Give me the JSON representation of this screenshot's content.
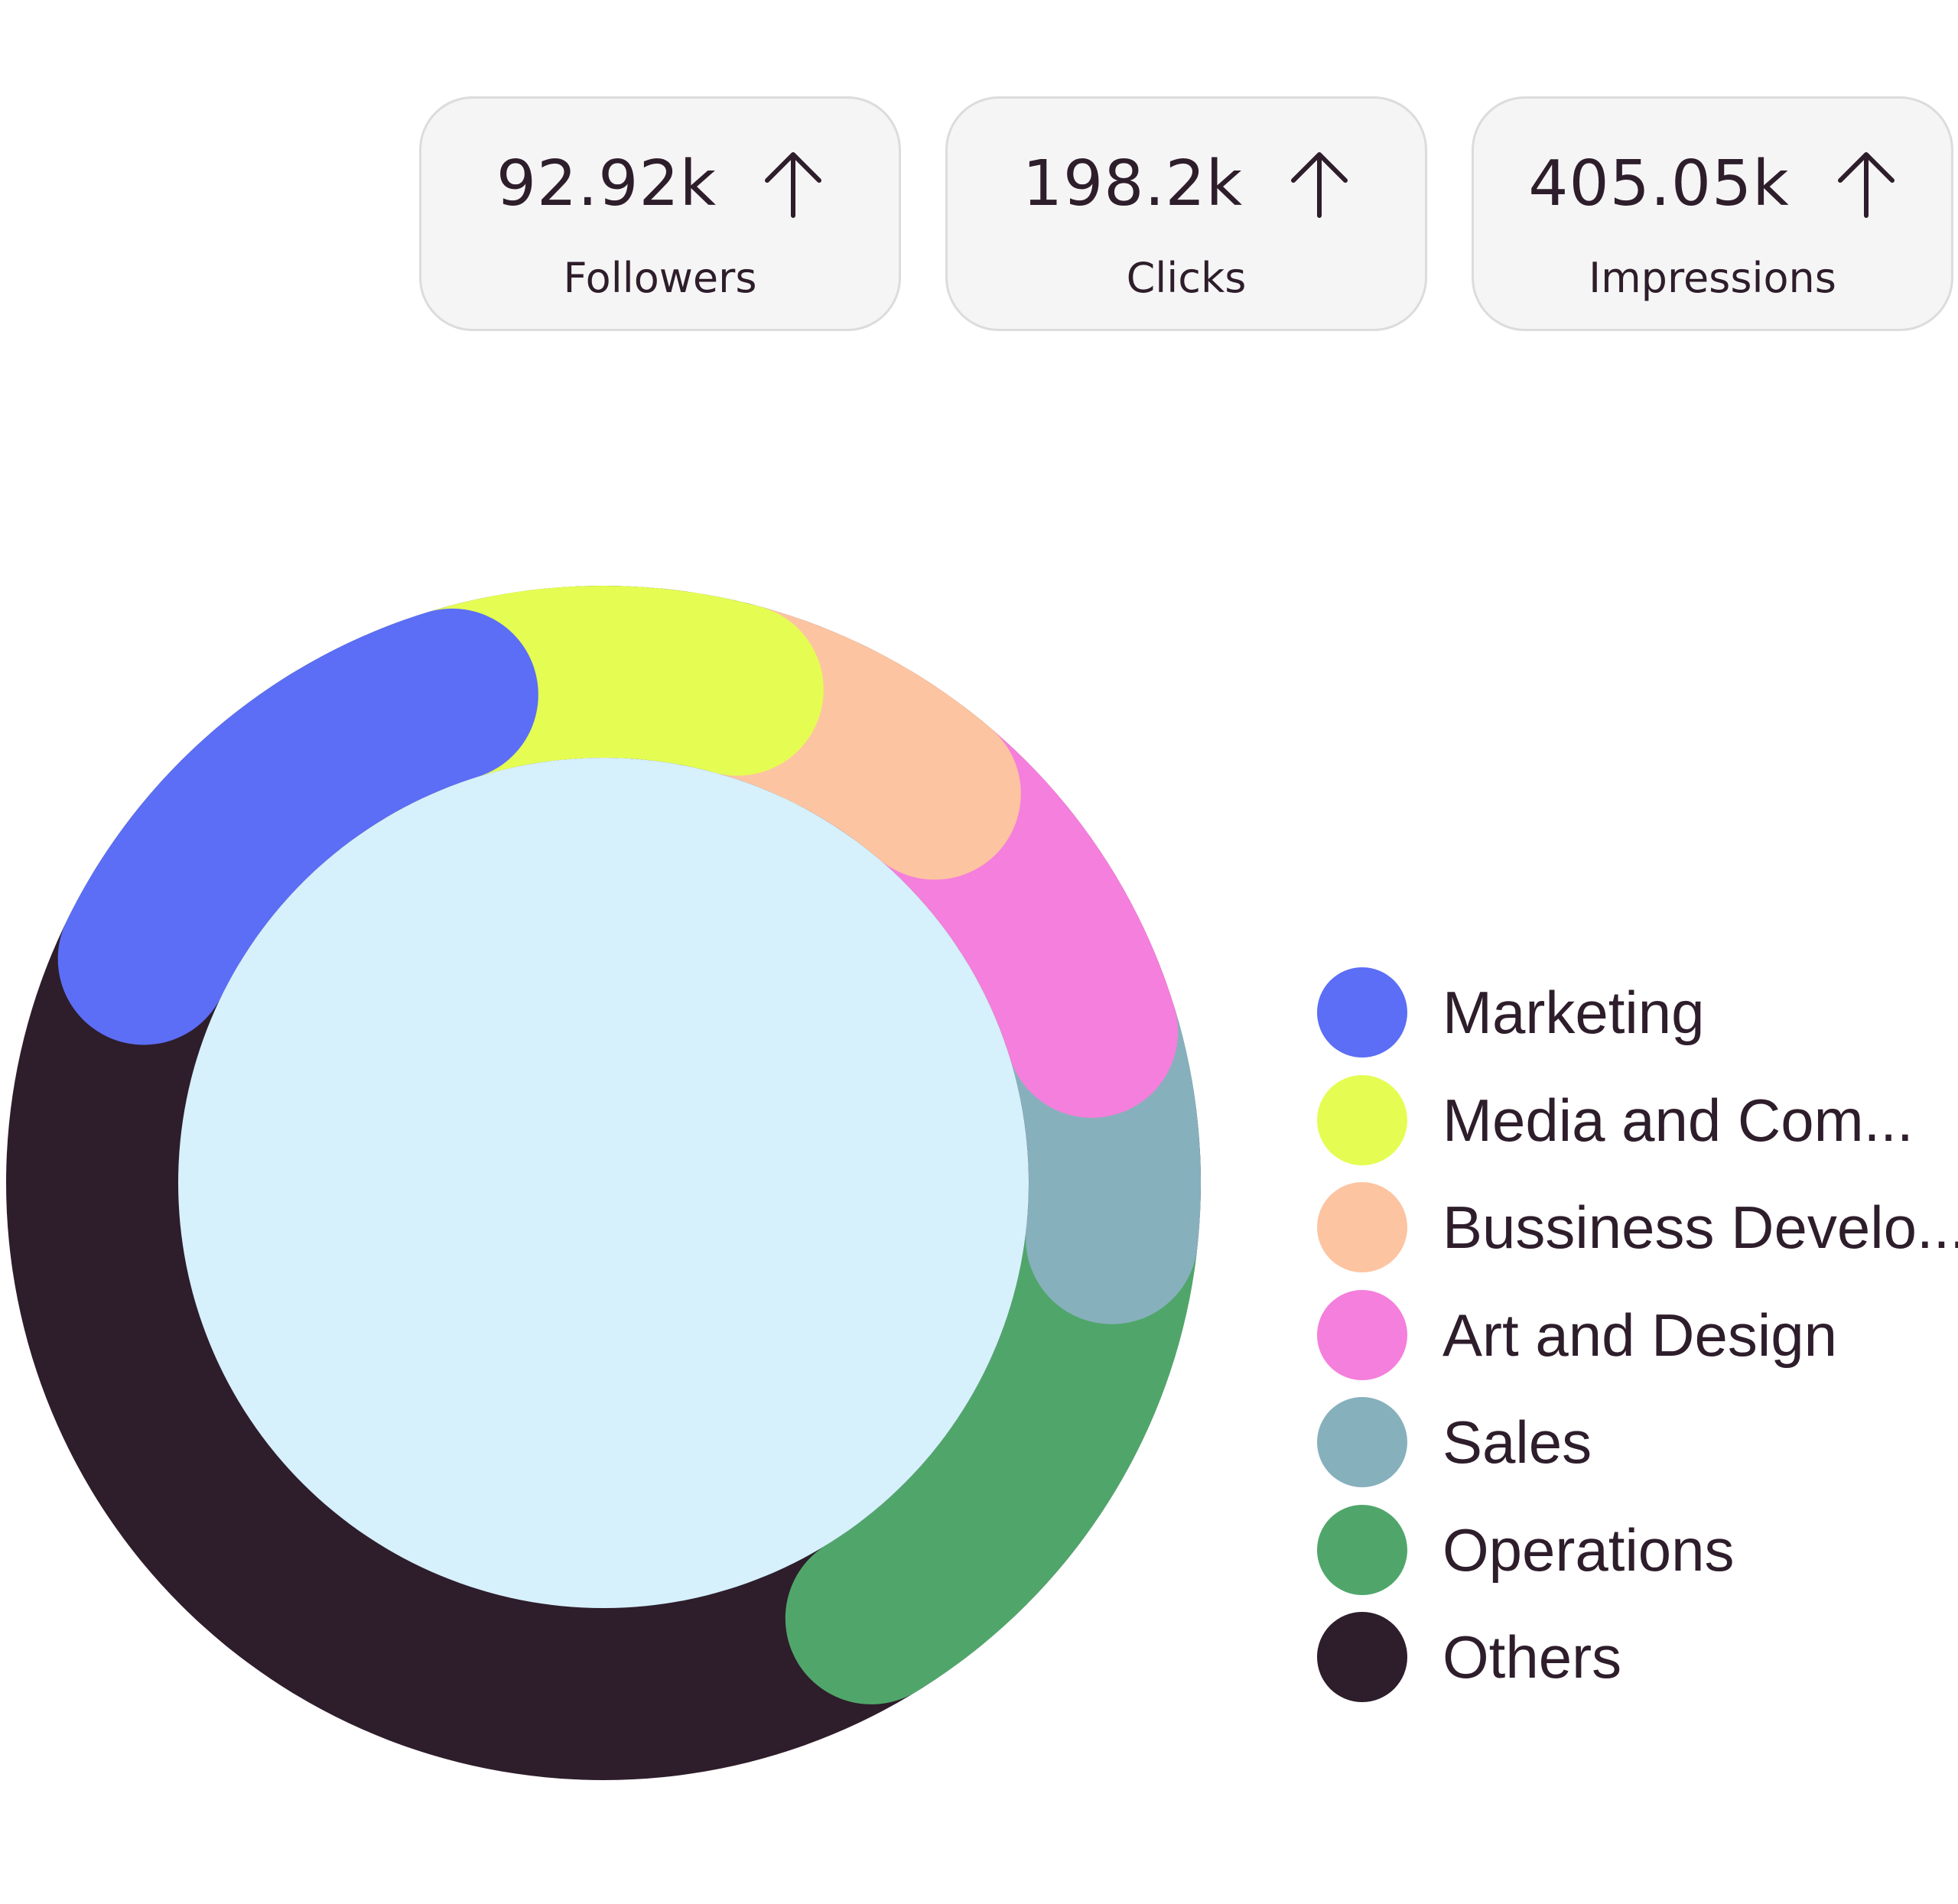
{
  "stats": [
    {
      "value": "92.92k",
      "label": "Followers",
      "trend_icon": "arrow-up-icon"
    },
    {
      "value": "198.2k",
      "label": "Clicks",
      "trend_icon": "arrow-up-icon"
    },
    {
      "value": "405.05k",
      "label": "Impressions",
      "trend_icon": "arrow-up-icon"
    }
  ],
  "chart_data": {
    "type": "pie",
    "style": "donut",
    "categories": [
      "Marketing",
      "Media and Com...",
      "Bussiness Develo...",
      "Art and Design",
      "Sales",
      "Operations",
      "Others"
    ],
    "values": [
      13.0,
      9.0,
      7.0,
      9.0,
      6.5,
      14.5,
      41.0
    ],
    "colors": [
      "#5b6ef5",
      "#e5fd52",
      "#fdc4a1",
      "#f57fdc",
      "#87b0bd",
      "#50a66a",
      "#2e1d2b"
    ],
    "center_color": "#d6f0fc",
    "legend_position": "right"
  },
  "legend": {
    "items": [
      {
        "label": "Marketing",
        "color": "#5b6ef5"
      },
      {
        "label": "Media and Com...",
        "color": "#e5fd52"
      },
      {
        "label": "Bussiness Develo...",
        "color": "#fdc4a1"
      },
      {
        "label": "Art and Design",
        "color": "#f57fdc"
      },
      {
        "label": "Sales",
        "color": "#87b0bd"
      },
      {
        "label": "Operations",
        "color": "#50a66a"
      },
      {
        "label": "Others",
        "color": "#2e1d2b"
      }
    ]
  }
}
